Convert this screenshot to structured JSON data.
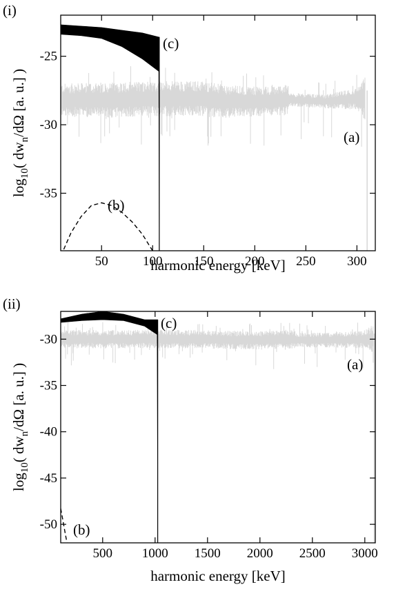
{
  "chart_data": [
    {
      "type": "line",
      "panel_label": "(i)",
      "xlabel": "harmonic energy [keV]",
      "ylabel_main": "log",
      "ylabel_sub": "10",
      "ylabel_rest_a": "( dw",
      "ylabel_rest_b": "n",
      "ylabel_rest_c": "/dΩ [a. u.] )",
      "xlim": [
        10,
        318
      ],
      "ylim": [
        -39.2,
        -22
      ],
      "xticks": [
        50,
        100,
        150,
        200,
        250,
        300
      ],
      "yticks": [
        -25,
        -30,
        -35
      ],
      "grid": false,
      "series": [
        {
          "annotation": "(a)",
          "color": "#d8d8d8",
          "style": "spiky band",
          "x": [
            10,
            60,
            100,
            150,
            170,
            200,
            233,
            234,
            270,
            300,
            308,
            310
          ],
          "y": [
            -28.2,
            -28.2,
            -28.1,
            -28.1,
            -28.3,
            -28.3,
            -28.2,
            -28.2,
            -28.3,
            -28.1,
            -28.1,
            -39.2
          ],
          "band_halfwidth": [
            1.2,
            1.3,
            1.3,
            1.3,
            1.2,
            1.1,
            1.1,
            0.5,
            0.5,
            0.8,
            1.6,
            0
          ]
        },
        {
          "annotation": "(b)",
          "color": "#000000",
          "style": "dashed",
          "x": [
            13,
            20,
            30,
            40,
            50,
            60,
            70,
            80,
            90,
            100
          ],
          "y": [
            -39.1,
            -37.9,
            -36.7,
            -35.9,
            -35.7,
            -35.9,
            -36.4,
            -37.1,
            -38.0,
            -39.2
          ]
        },
        {
          "annotation": "(c)",
          "color": "#000000",
          "style": "filled band",
          "x": [
            10,
            30,
            50,
            70,
            90,
            106,
            106.5
          ],
          "y_top": [
            -22.7,
            -22.8,
            -22.9,
            -23.1,
            -23.3,
            -23.6,
            -23.6
          ],
          "y_bottom": [
            -23.4,
            -23.5,
            -23.7,
            -24.3,
            -25.2,
            -26.1,
            -39.2
          ]
        }
      ]
    },
    {
      "type": "line",
      "panel_label": "(ii)",
      "xlabel": "harmonic energy [keV]",
      "ylabel_main": "log",
      "ylabel_sub": "10",
      "ylabel_rest_a": "( dw",
      "ylabel_rest_b": "n",
      "ylabel_rest_c": "/dΩ [a. u.] )",
      "xlim": [
        100,
        3100
      ],
      "ylim": [
        -52,
        -27
      ],
      "xticks": [
        500,
        1000,
        1500,
        2000,
        2500,
        3000
      ],
      "yticks": [
        -30,
        -35,
        -40,
        -45,
        -50
      ],
      "grid": false,
      "series": [
        {
          "annotation": "(a)",
          "color": "#d8d8d8",
          "style": "spiky band",
          "x": [
            100,
            500,
            1000,
            1500,
            1700,
            2000,
            2330,
            2340,
            2700,
            3000,
            3080,
            3090
          ],
          "y": [
            -30,
            -30,
            -30,
            -30,
            -30.1,
            -30.1,
            -30,
            -30.1,
            -30.1,
            -30,
            -30,
            -52
          ],
          "band_halfwidth": [
            1.0,
            1.0,
            1.0,
            1.0,
            1.0,
            1.0,
            1.0,
            0.8,
            0.8,
            1.0,
            1.6,
            0
          ]
        },
        {
          "annotation": "(b)",
          "color": "#000000",
          "style": "dashed",
          "x": [
            100,
            120,
            140,
            160
          ],
          "y": [
            -48.3,
            -49.5,
            -50.8,
            -52
          ]
        },
        {
          "annotation": "(c)",
          "color": "#000000",
          "style": "filled band",
          "x": [
            100,
            300,
            500,
            700,
            900,
            1020,
            1025
          ],
          "y_top": [
            -27.8,
            -27.3,
            -27.0,
            -27.3,
            -27.9,
            -27.9,
            -27.9
          ],
          "y_bottom": [
            -28.2,
            -28.0,
            -27.9,
            -28.0,
            -28.6,
            -29.5,
            -52
          ]
        }
      ]
    }
  ]
}
